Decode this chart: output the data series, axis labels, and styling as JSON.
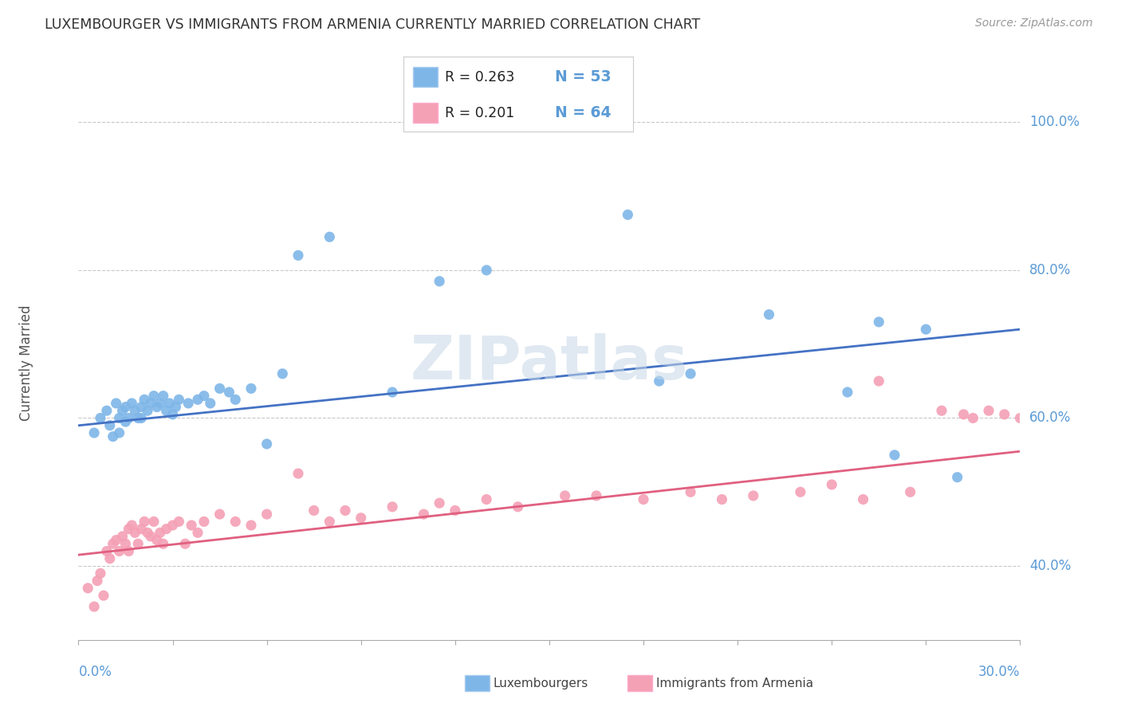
{
  "title": "LUXEMBOURGER VS IMMIGRANTS FROM ARMENIA CURRENTLY MARRIED CORRELATION CHART",
  "source": "Source: ZipAtlas.com",
  "ylabel": "Currently Married",
  "right_yticks": [
    "40.0%",
    "60.0%",
    "80.0%",
    "100.0%"
  ],
  "right_ytick_vals": [
    0.4,
    0.6,
    0.8,
    1.0
  ],
  "xlim": [
    0.0,
    0.3
  ],
  "ylim": [
    0.3,
    1.05
  ],
  "legend_R1": "R = 0.263",
  "legend_N1": "N = 53",
  "legend_R2": "R = 0.201",
  "legend_N2": "N = 64",
  "color_blue": "#7EB6E8",
  "color_pink": "#F4A0B5",
  "color_blue_line": "#4472C4",
  "color_pink_line": "#E06080",
  "blue_scatter_x": [
    0.005,
    0.007,
    0.009,
    0.01,
    0.011,
    0.012,
    0.013,
    0.013,
    0.014,
    0.015,
    0.015,
    0.016,
    0.017,
    0.018,
    0.019,
    0.02,
    0.02,
    0.021,
    0.022,
    0.023,
    0.024,
    0.025,
    0.026,
    0.027,
    0.028,
    0.029,
    0.03,
    0.031,
    0.032,
    0.035,
    0.038,
    0.04,
    0.042,
    0.045,
    0.048,
    0.05,
    0.055,
    0.06,
    0.065,
    0.07,
    0.08,
    0.1,
    0.115,
    0.13,
    0.175,
    0.185,
    0.195,
    0.22,
    0.245,
    0.255,
    0.26,
    0.27,
    0.28
  ],
  "blue_scatter_y": [
    0.58,
    0.6,
    0.61,
    0.59,
    0.575,
    0.62,
    0.6,
    0.58,
    0.61,
    0.595,
    0.615,
    0.6,
    0.62,
    0.61,
    0.6,
    0.615,
    0.6,
    0.625,
    0.61,
    0.62,
    0.63,
    0.615,
    0.62,
    0.63,
    0.61,
    0.62,
    0.605,
    0.615,
    0.625,
    0.62,
    0.625,
    0.63,
    0.62,
    0.64,
    0.635,
    0.625,
    0.64,
    0.565,
    0.66,
    0.82,
    0.845,
    0.635,
    0.785,
    0.8,
    0.875,
    0.65,
    0.66,
    0.74,
    0.635,
    0.73,
    0.55,
    0.72,
    0.52
  ],
  "pink_scatter_x": [
    0.003,
    0.005,
    0.006,
    0.007,
    0.008,
    0.009,
    0.01,
    0.011,
    0.012,
    0.013,
    0.014,
    0.015,
    0.016,
    0.016,
    0.017,
    0.018,
    0.019,
    0.02,
    0.021,
    0.022,
    0.023,
    0.024,
    0.025,
    0.026,
    0.027,
    0.028,
    0.03,
    0.032,
    0.034,
    0.036,
    0.038,
    0.04,
    0.045,
    0.05,
    0.055,
    0.06,
    0.07,
    0.075,
    0.08,
    0.085,
    0.09,
    0.1,
    0.11,
    0.115,
    0.12,
    0.13,
    0.14,
    0.155,
    0.165,
    0.18,
    0.195,
    0.205,
    0.215,
    0.23,
    0.24,
    0.25,
    0.255,
    0.265,
    0.275,
    0.282,
    0.285,
    0.29,
    0.295,
    0.3
  ],
  "pink_scatter_y": [
    0.37,
    0.345,
    0.38,
    0.39,
    0.36,
    0.42,
    0.41,
    0.43,
    0.435,
    0.42,
    0.44,
    0.43,
    0.45,
    0.42,
    0.455,
    0.445,
    0.43,
    0.45,
    0.46,
    0.445,
    0.44,
    0.46,
    0.435,
    0.445,
    0.43,
    0.45,
    0.455,
    0.46,
    0.43,
    0.455,
    0.445,
    0.46,
    0.47,
    0.46,
    0.455,
    0.47,
    0.525,
    0.475,
    0.46,
    0.475,
    0.465,
    0.48,
    0.47,
    0.485,
    0.475,
    0.49,
    0.48,
    0.495,
    0.495,
    0.49,
    0.5,
    0.49,
    0.495,
    0.5,
    0.51,
    0.49,
    0.65,
    0.5,
    0.61,
    0.605,
    0.6,
    0.61,
    0.605,
    0.6
  ],
  "watermark": "ZIPatlas",
  "background_color": "#FFFFFF",
  "grid_color": "#C8C8C8",
  "tick_color": "#5B9BD5",
  "label_color": "#555555"
}
